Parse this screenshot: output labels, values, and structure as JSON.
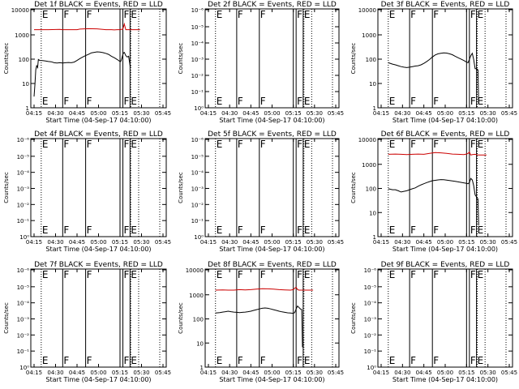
{
  "chart_data": [
    {
      "type": "line",
      "title": "Det 1f BLACK = Events, RED = LLD",
      "xlabel": "Start Time (04-Sep-17 04:10:00)",
      "ylabel": "Counts/sec",
      "xticks": [
        "04:15",
        "04:30",
        "04:45",
        "05:00",
        "05:15",
        "05:30",
        "05:45"
      ],
      "yscale": "log",
      "yticks": [
        "1",
        "10",
        "100",
        "1000",
        "10000"
      ],
      "ylim": [
        1,
        15000
      ],
      "markers": [
        {
          "t": 5,
          "label": "E"
        },
        {
          "t": 20,
          "label": "F"
        },
        {
          "t": 36,
          "label": "F"
        },
        {
          "t": 62,
          "label": "F"
        },
        {
          "t": 67,
          "label": "E"
        }
      ],
      "series": [
        {
          "color": "#000000",
          "x": [
            0,
            0.6,
            1.2,
            1.8,
            2.5,
            3,
            4,
            6,
            8,
            10,
            12,
            14,
            16,
            18,
            20,
            22,
            24,
            26,
            28,
            30,
            32,
            34,
            36,
            38,
            40,
            42,
            44,
            46,
            48,
            50,
            52,
            54,
            56,
            58,
            59,
            60,
            60.5,
            61,
            61.5,
            62,
            62.5,
            63,
            64,
            65,
            66,
            67,
            67.5
          ],
          "y": [
            3,
            10,
            40,
            60,
            50,
            110,
            100,
            98,
            95,
            90,
            88,
            80,
            78,
            80,
            78,
            80,
            82,
            80,
            85,
            100,
            120,
            140,
            160,
            180,
            210,
            220,
            230,
            225,
            215,
            200,
            180,
            150,
            130,
            110,
            100,
            90,
            90,
            110,
            135,
            180,
            210,
            220,
            160,
            140,
            150,
            60,
            55
          ]
        },
        {
          "color": "#cc0000",
          "x": [
            0,
            10,
            18,
            20,
            23,
            26,
            30,
            32,
            38,
            44,
            50,
            54,
            56,
            58,
            60,
            62,
            63,
            64,
            66,
            68,
            70,
            72,
            74
          ],
          "y": [
            2000,
            2000,
            2050,
            2000,
            2000,
            2000,
            2000,
            2100,
            2200,
            2150,
            2000,
            2000,
            1950,
            2000,
            2000,
            2100,
            3500,
            2000,
            2000,
            2000,
            2000,
            2000,
            2000
          ]
        }
      ]
    },
    {
      "type": "line",
      "title": "Det 2f BLACK = Events, RED = LLD",
      "xlabel": "Start Time (04-Sep-17 04:10:00)",
      "ylabel": "Counts/sec",
      "xticks": [
        "04:15",
        "04:30",
        "04:45",
        "05:00",
        "05:15",
        "05:30",
        "05:45"
      ],
      "yscale": "log",
      "yticks": [
        "10⁰",
        "10⁻¹",
        "10⁻²",
        "10⁻³",
        "10⁻⁴",
        "10⁻⁵",
        "10⁻⁶"
      ],
      "ylim": [
        1,
        1e-06
      ],
      "markers": [
        {
          "t": 5,
          "label": "E"
        },
        {
          "t": 20,
          "label": "F"
        },
        {
          "t": 36,
          "label": "F"
        },
        {
          "t": 62,
          "label": "F"
        },
        {
          "t": 67,
          "label": "E"
        }
      ],
      "series": []
    },
    {
      "type": "line",
      "title": "Det 3f BLACK = Events, RED = LLD",
      "xlabel": "Start Time (04-Sep-17 04:10:00)",
      "ylabel": "Counts/sec",
      "xticks": [
        "04:15",
        "04:30",
        "04:45",
        "05:00",
        "05:15",
        "05:30",
        "05:45"
      ],
      "yscale": "log",
      "yticks": [
        "1",
        "10",
        "100",
        "1000",
        "10000"
      ],
      "ylim": [
        1,
        15000
      ],
      "markers": [
        {
          "t": 5,
          "label": "E"
        },
        {
          "t": 20,
          "label": "F"
        },
        {
          "t": 36,
          "label": "F"
        },
        {
          "t": 62,
          "label": "F"
        },
        {
          "t": 67,
          "label": "E"
        }
      ],
      "series": [
        {
          "color": "#000000",
          "x": [
            5,
            8,
            10,
            12,
            14,
            16,
            18,
            20,
            22,
            24,
            26,
            28,
            30,
            32,
            34,
            36,
            38,
            40,
            42,
            44,
            46,
            48,
            50,
            52,
            54,
            56,
            58,
            60,
            61,
            62,
            63,
            64,
            65,
            66,
            67,
            68,
            68.5
          ],
          "y": [
            80,
            70,
            65,
            60,
            55,
            52,
            50,
            52,
            55,
            58,
            60,
            65,
            75,
            90,
            110,
            140,
            170,
            190,
            200,
            210,
            205,
            190,
            175,
            150,
            130,
            115,
            100,
            85,
            80,
            110,
            160,
            200,
            110,
            45,
            45,
            40,
            1.5
          ]
        }
      ]
    },
    {
      "type": "line",
      "title": "Det 4f BLACK = Events, RED = LLD",
      "xlabel": "Start Time (04-Sep-17 04:10:00)",
      "ylabel": "Counts/sec",
      "xticks": [
        "04:15",
        "04:30",
        "04:45",
        "05:00",
        "05:15",
        "05:30",
        "05:45"
      ],
      "yscale": "log",
      "yticks": [
        "10⁰",
        "10⁻¹",
        "10⁻²",
        "10⁻³",
        "10⁻⁴",
        "10⁻⁵",
        "10⁻⁶"
      ],
      "ylim": [
        1,
        1e-06
      ],
      "markers": [
        {
          "t": 5,
          "label": "E"
        },
        {
          "t": 20,
          "label": "F"
        },
        {
          "t": 36,
          "label": "F"
        },
        {
          "t": 62,
          "label": "F"
        },
        {
          "t": 67,
          "label": "E"
        }
      ],
      "series": []
    },
    {
      "type": "line",
      "title": "Det 5f BLACK = Events, RED = LLD",
      "xlabel": "Start Time (04-Sep-17 04:10:00)",
      "ylabel": "Counts/sec",
      "xticks": [
        "04:15",
        "04:30",
        "04:45",
        "05:00",
        "05:15",
        "05:30",
        "05:45"
      ],
      "yscale": "log",
      "yticks": [
        "10⁰",
        "10⁻¹",
        "10⁻²",
        "10⁻³",
        "10⁻⁴",
        "10⁻⁵",
        "10⁻⁶"
      ],
      "ylim": [
        1,
        1e-06
      ],
      "markers": [
        {
          "t": 5,
          "label": "E"
        },
        {
          "t": 20,
          "label": "F"
        },
        {
          "t": 36,
          "label": "F"
        },
        {
          "t": 62,
          "label": "F"
        },
        {
          "t": 67,
          "label": "E"
        }
      ],
      "series": []
    },
    {
      "type": "line",
      "title": "Det 6f BLACK = Events, RED = LLD",
      "xlabel": "Start Time (04-Sep-17 04:10:00)",
      "ylabel": "Counts/sec",
      "xticks": [
        "04:15",
        "04:30",
        "04:45",
        "05:00",
        "05:15",
        "05:30",
        "05:45"
      ],
      "yscale": "log",
      "yticks": [
        "1",
        "10",
        "100",
        "1000",
        "10000"
      ],
      "ylim": [
        1,
        15000
      ],
      "markers": [
        {
          "t": 5,
          "label": "E"
        },
        {
          "t": 20,
          "label": "F"
        },
        {
          "t": 36,
          "label": "F"
        },
        {
          "t": 62,
          "label": "F"
        },
        {
          "t": 67,
          "label": "E"
        }
      ],
      "series": [
        {
          "color": "#000000",
          "x": [
            5,
            8,
            10,
            12,
            14,
            16,
            18,
            20,
            22,
            24,
            26,
            28,
            30,
            32,
            34,
            36,
            38,
            40,
            42,
            44,
            46,
            48,
            50,
            52,
            54,
            56,
            58,
            60,
            61,
            62,
            63,
            64,
            65,
            66,
            67,
            68,
            68.5
          ],
          "y": [
            110,
            100,
            100,
            90,
            80,
            85,
            90,
            100,
            110,
            120,
            140,
            160,
            180,
            200,
            220,
            240,
            250,
            260,
            270,
            265,
            255,
            245,
            235,
            225,
            215,
            205,
            195,
            185,
            180,
            200,
            300,
            260,
            150,
            60,
            50,
            40,
            3
          ]
        },
        {
          "color": "#cc0000",
          "x": [
            5,
            10,
            14,
            18,
            22,
            26,
            30,
            34,
            38,
            42,
            46,
            50,
            54,
            58,
            60,
            61,
            62,
            63,
            64,
            66,
            68,
            70,
            72,
            74
          ],
          "y": [
            3200,
            3300,
            3200,
            3100,
            3200,
            3300,
            3200,
            3500,
            3800,
            3700,
            3500,
            3300,
            3200,
            3100,
            3300,
            3500,
            4000,
            3000,
            3100,
            3200,
            3000,
            3000,
            3000,
            3000
          ]
        }
      ]
    },
    {
      "type": "line",
      "title": "Det 7f BLACK = Events, RED = LLD",
      "xlabel": "Start Time (04-Sep-17 04:10:00)",
      "ylabel": "Counts/sec",
      "xticks": [
        "04:15",
        "04:30",
        "04:45",
        "05:00",
        "05:15",
        "05:30",
        "05:45"
      ],
      "yscale": "log",
      "yticks": [
        "10⁰",
        "10⁻¹",
        "10⁻²",
        "10⁻³",
        "10⁻⁴",
        "10⁻⁵",
        "10⁻⁶"
      ],
      "ylim": [
        1,
        1e-06
      ],
      "markers": [
        {
          "t": 5,
          "label": "E"
        },
        {
          "t": 20,
          "label": "F"
        },
        {
          "t": 36,
          "label": "F"
        },
        {
          "t": 62,
          "label": "F"
        },
        {
          "t": 67,
          "label": "E"
        }
      ],
      "series": []
    },
    {
      "type": "line",
      "title": "Det 8f BLACK = Events, RED = LLD",
      "xlabel": "Start Time (04-Sep-17 04:10:00)",
      "ylabel": "Counts/sec",
      "xticks": [
        "04:15",
        "04:30",
        "04:45",
        "05:00",
        "05:15",
        "05:30",
        "05:45"
      ],
      "yscale": "log",
      "yticks": [
        "1",
        "10",
        "100",
        "1000",
        "10000"
      ],
      "ylim": [
        1,
        15000
      ],
      "markers": [
        {
          "t": 5,
          "label": "E"
        },
        {
          "t": 20,
          "label": "F"
        },
        {
          "t": 36,
          "label": "F"
        },
        {
          "t": 62,
          "label": "F"
        },
        {
          "t": 67,
          "label": "E"
        }
      ],
      "series": [
        {
          "color": "#000000",
          "x": [
            5,
            8,
            10,
            12,
            14,
            16,
            18,
            20,
            22,
            24,
            26,
            28,
            30,
            32,
            34,
            36,
            38,
            40,
            42,
            44,
            46,
            48,
            50,
            52,
            54,
            56,
            58,
            60,
            61,
            62,
            63,
            64,
            65,
            66,
            66.5
          ],
          "y": [
            200,
            210,
            220,
            230,
            240,
            230,
            220,
            215,
            210,
            215,
            220,
            230,
            240,
            260,
            280,
            300,
            320,
            330,
            320,
            300,
            280,
            260,
            240,
            225,
            215,
            205,
            200,
            195,
            210,
            300,
            400,
            350,
            300,
            280,
            7
          ]
        },
        {
          "color": "#cc0000",
          "x": [
            5,
            10,
            14,
            18,
            22,
            26,
            30,
            34,
            38,
            42,
            46,
            50,
            54,
            58,
            60,
            61,
            62,
            63,
            64,
            66,
            68,
            70,
            72,
            74
          ],
          "y": [
            1900,
            1950,
            1900,
            1900,
            2000,
            1950,
            2000,
            2100,
            2200,
            2150,
            2100,
            2000,
            1950,
            1900,
            2000,
            2300,
            2500,
            2000,
            1900,
            1900,
            1900,
            1900,
            1900,
            1900
          ]
        }
      ]
    },
    {
      "type": "line",
      "title": "Det 9f BLACK = Events, RED = LLD",
      "xlabel": "Start Time (04-Sep-17 04:10:00)",
      "ylabel": "Counts/sec",
      "xticks": [
        "04:15",
        "04:30",
        "04:45",
        "05:00",
        "05:15",
        "05:30",
        "05:45"
      ],
      "yscale": "log",
      "yticks": [
        "10⁰",
        "10⁻¹",
        "10⁻²",
        "10⁻³",
        "10⁻⁴",
        "10⁻⁵",
        "10⁻⁶"
      ],
      "ylim": [
        1,
        1e-06
      ],
      "markers": [
        {
          "t": 5,
          "label": "E"
        },
        {
          "t": 20,
          "label": "F"
        },
        {
          "t": 36,
          "label": "F"
        },
        {
          "t": 62,
          "label": "F"
        },
        {
          "t": 67,
          "label": "E"
        }
      ],
      "series": []
    }
  ]
}
